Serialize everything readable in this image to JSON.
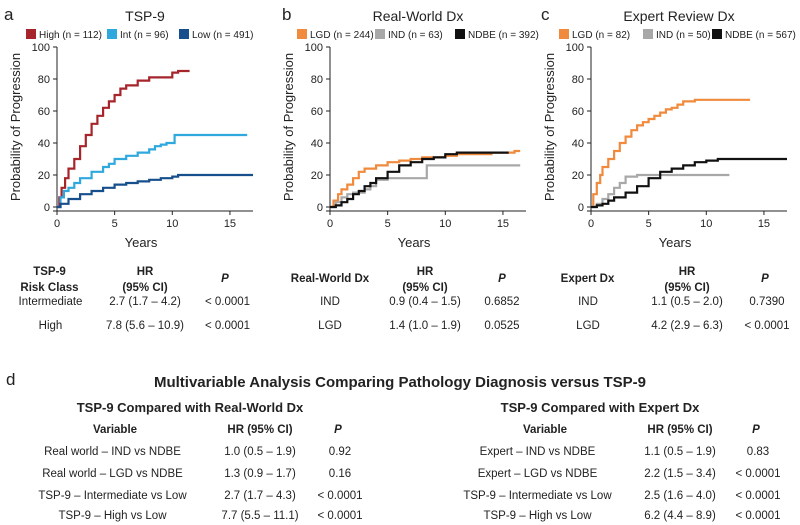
{
  "colors": {
    "high": "#a6252b",
    "int": "#2ea8dd",
    "low": "#164f8c",
    "lgd": "#f08a3c",
    "ind": "#a8a8a8",
    "ndbe": "#111111",
    "text": "#222222"
  },
  "chart_data": [
    {
      "type": "line",
      "panel": "a",
      "title": "TSP-9",
      "xlabel": "Years",
      "ylabel": "Probability of Progression",
      "xlim": [
        0,
        17
      ],
      "ylim": [
        0,
        100
      ],
      "xticks": [
        "0",
        "5",
        "10",
        "15"
      ],
      "yticks": [
        "0",
        "20",
        "40",
        "60",
        "80",
        "100"
      ],
      "series": [
        {
          "name": "High (n = 112)",
          "color": "#a6252b",
          "x": [
            0,
            0.2,
            0.4,
            0.7,
            1,
            1.5,
            2,
            2.5,
            3,
            3.5,
            4,
            4.5,
            5,
            5.5,
            6,
            7,
            8,
            9,
            10,
            10.5,
            11.5
          ],
          "y": [
            0,
            6,
            12,
            18,
            24,
            30,
            38,
            45,
            52,
            57,
            62,
            66,
            70,
            74,
            76,
            79,
            81,
            81,
            84,
            85,
            85
          ]
        },
        {
          "name": "Int (n = 96)",
          "color": "#2ea8dd",
          "x": [
            0,
            0.3,
            0.6,
            1,
            1.5,
            2,
            3,
            4,
            4.5,
            5,
            6,
            7,
            8,
            8.5,
            9,
            9.5,
            10,
            10.2,
            16.5
          ],
          "y": [
            0,
            6,
            10,
            12,
            15,
            18,
            22,
            25,
            27,
            30,
            32,
            34,
            36,
            38,
            39,
            40,
            40,
            45,
            45
          ]
        },
        {
          "name": "Low (n = 491)",
          "color": "#164f8c",
          "x": [
            0,
            0.3,
            1,
            2,
            3,
            4,
            5,
            6,
            7,
            8,
            9,
            10,
            10.5,
            17
          ],
          "y": [
            0,
            2,
            5,
            8,
            10,
            12,
            14,
            15,
            16,
            17,
            18,
            19,
            20,
            20
          ]
        }
      ]
    },
    {
      "type": "line",
      "panel": "b",
      "title": "Real-World Dx",
      "xlabel": "Years",
      "ylabel": "Probability of Progression",
      "xlim": [
        0,
        17
      ],
      "ylim": [
        0,
        100
      ],
      "xticks": [
        "0",
        "5",
        "10",
        "15"
      ],
      "yticks": [
        "0",
        "20",
        "40",
        "60",
        "80",
        "100"
      ],
      "series": [
        {
          "name": "LGD (n = 244)",
          "color": "#f08a3c",
          "x": [
            0,
            0.3,
            0.7,
            1,
            1.5,
            2,
            2.5,
            3,
            4,
            5,
            6,
            7,
            8,
            9,
            10,
            11,
            12,
            13,
            14,
            15,
            16,
            16.5
          ],
          "y": [
            0,
            4,
            8,
            11,
            14,
            18,
            22,
            24,
            26,
            28,
            29,
            30,
            31,
            31,
            32,
            33,
            33,
            33,
            34,
            34,
            35,
            35
          ]
        },
        {
          "name": "IND (n = 63)",
          "color": "#a8a8a8",
          "x": [
            0,
            0.5,
            1,
            1.5,
            2,
            3,
            3.5,
            4,
            5,
            6,
            8,
            8.4,
            10,
            12,
            16.5
          ],
          "y": [
            0,
            3,
            6,
            8,
            9,
            11,
            13,
            17,
            18,
            18,
            18,
            26,
            26,
            26,
            26
          ]
        },
        {
          "name": "NDBE (n = 392)",
          "color": "#111111",
          "x": [
            0,
            0.5,
            1,
            1.5,
            2,
            2.5,
            3,
            3.5,
            4,
            5,
            6,
            7,
            8,
            9,
            10,
            11,
            12,
            14,
            15.5
          ],
          "y": [
            0,
            1,
            3,
            5,
            8,
            10,
            13,
            15,
            18,
            22,
            26,
            28,
            30,
            31,
            33,
            34,
            34,
            34,
            34
          ]
        }
      ]
    },
    {
      "type": "line",
      "panel": "c",
      "title": "Expert Review Dx",
      "xlabel": "Years",
      "ylabel": "Probability of Progression",
      "xlim": [
        0,
        17
      ],
      "ylim": [
        0,
        100
      ],
      "xticks": [
        "0",
        "5",
        "10",
        "15"
      ],
      "yticks": [
        "0",
        "20",
        "40",
        "60",
        "80",
        "100"
      ],
      "series": [
        {
          "name": "LGD (n = 82)",
          "color": "#f08a3c",
          "x": [
            0,
            0.2,
            0.5,
            0.8,
            1,
            1.5,
            2,
            2.5,
            3,
            3.5,
            4,
            4.5,
            5,
            5.5,
            6,
            6.5,
            7,
            7.5,
            8,
            9,
            10,
            12,
            13.8
          ],
          "y": [
            0,
            8,
            15,
            20,
            25,
            30,
            35,
            40,
            44,
            48,
            51,
            53,
            55,
            57,
            59,
            61,
            62,
            64,
            66,
            67,
            67,
            67,
            67
          ]
        },
        {
          "name": "IND (n = 50)",
          "color": "#a8a8a8",
          "x": [
            0,
            0.5,
            1,
            1.5,
            2,
            2.5,
            3,
            4,
            5,
            8,
            12
          ],
          "y": [
            0,
            2,
            5,
            8,
            12,
            15,
            19,
            20,
            20,
            20,
            20
          ]
        },
        {
          "name": "NDBE (n = 567)",
          "color": "#111111",
          "x": [
            0,
            0.5,
            1,
            1.5,
            2,
            3,
            4,
            5,
            6,
            7,
            8,
            9,
            10,
            11,
            12,
            17
          ],
          "y": [
            0,
            1,
            2,
            4,
            6,
            9,
            13,
            18,
            22,
            24,
            26,
            28,
            29,
            30,
            30,
            30
          ]
        }
      ]
    }
  ],
  "hr_tables": [
    {
      "headers": [
        "TSP-9\nRisk Class",
        "HR\n(95% CI)",
        "P"
      ],
      "rows": [
        [
          "Intermediate",
          "2.7 (1.7 – 4.2)",
          "< 0.0001"
        ],
        [
          "High",
          "7.8 (5.6 – 10.9)",
          "< 0.0001"
        ]
      ]
    },
    {
      "headers": [
        "Real-World Dx",
        "HR\n(95% CI)",
        "P"
      ],
      "rows": [
        [
          "IND",
          "0.9 (0.4 – 1.5)",
          "0.6852"
        ],
        [
          "LGD",
          "1.4 (1.0 – 1.9)",
          "0.0525"
        ]
      ]
    },
    {
      "headers": [
        "Expert Dx",
        "HR\n(95% CI)",
        "P"
      ],
      "rows": [
        [
          "IND",
          "1.1 (0.5 – 2.0)",
          "0.7390"
        ],
        [
          "LGD",
          "4.2 (2.9 – 6.3)",
          "< 0.0001"
        ]
      ]
    }
  ],
  "panel_d": {
    "letter": "d",
    "title": "Multivariable Analysis Comparing Pathology Diagnosis versus TSP-9",
    "left": {
      "subtitle": "TSP-9 Compared with Real-World Dx",
      "headers": [
        "Variable",
        "HR (95% CI)",
        "P"
      ],
      "rows": [
        [
          "Real world – IND vs NDBE",
          "1.0 (0.5 – 1.9)",
          "0.92"
        ],
        [
          "Real world – LGD vs NDBE",
          "1.3 (0.9 – 1.7)",
          "0.16"
        ],
        [
          "TSP-9 – Intermediate vs Low",
          "2.7 (1.7 – 4.3)",
          "< 0.0001"
        ],
        [
          "TSP-9 – High vs Low",
          "7.7 (5.5 – 11.1)",
          "< 0.0001"
        ]
      ]
    },
    "right": {
      "subtitle": "TSP-9 Compared with Expert Dx",
      "headers": [
        "Variable",
        "HR (95% CI)",
        "P"
      ],
      "rows": [
        [
          "Expert – IND vs NDBE",
          "1.1 (0.5 – 1.9)",
          "0.83"
        ],
        [
          "Expert – LGD vs NDBE",
          "2.2 (1.5 – 3.4)",
          "< 0.0001"
        ],
        [
          "TSP-9 – Intermediate vs Low",
          "2.5 (1.6 – 4.0)",
          "< 0.0001"
        ],
        [
          "TSP-9 – High vs Low",
          "6.2 (4.4 – 8.9)",
          "< 0.0001"
        ]
      ]
    }
  },
  "panel_letters": [
    "a",
    "b",
    "c"
  ]
}
